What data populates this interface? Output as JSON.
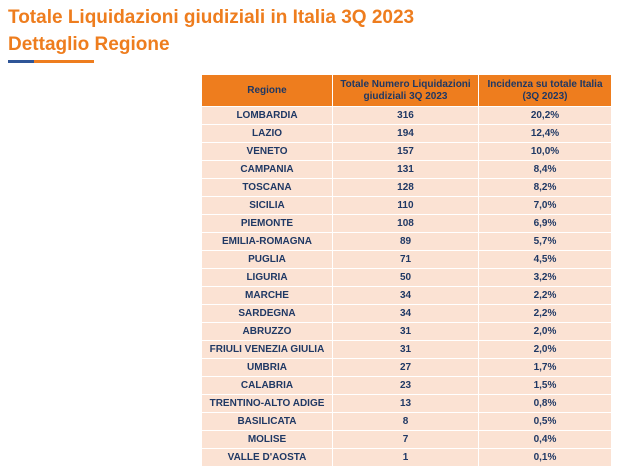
{
  "title": "Totale Liquidazioni giudiziali in Italia 3Q 2023",
  "subtitle": "Dettaglio Regione",
  "table": {
    "headers": [
      "Regione",
      "Totale Numero Liquidazioni giudiziali 3Q 2023",
      "Incidenza su totale Italia (3Q 2023)"
    ],
    "rows": [
      [
        "LOMBARDIA",
        "316",
        "20,2%"
      ],
      [
        "LAZIO",
        "194",
        "12,4%"
      ],
      [
        "VENETO",
        "157",
        "10,0%"
      ],
      [
        "CAMPANIA",
        "131",
        "8,4%"
      ],
      [
        "TOSCANA",
        "128",
        "8,2%"
      ],
      [
        "SICILIA",
        "110",
        "7,0%"
      ],
      [
        "PIEMONTE",
        "108",
        "6,9%"
      ],
      [
        "EMILIA-ROMAGNA",
        "89",
        "5,7%"
      ],
      [
        "PUGLIA",
        "71",
        "4,5%"
      ],
      [
        "LIGURIA",
        "50",
        "3,2%"
      ],
      [
        "MARCHE",
        "34",
        "2,2%"
      ],
      [
        "SARDEGNA",
        "34",
        "2,2%"
      ],
      [
        "ABRUZZO",
        "31",
        "2,0%"
      ],
      [
        "FRIULI VENEZIA GIULIA",
        "31",
        "2,0%"
      ],
      [
        "UMBRIA",
        "27",
        "1,7%"
      ],
      [
        "CALABRIA",
        "23",
        "1,5%"
      ],
      [
        "TRENTINO-ALTO ADIGE",
        "13",
        "0,8%"
      ],
      [
        "BASILICATA",
        "8",
        "0,5%"
      ],
      [
        "MOLISE",
        "7",
        "0,4%"
      ],
      [
        "VALLE D'AOSTA",
        "1",
        "0,1%"
      ]
    ]
  },
  "colors": {
    "accent": "#EE7D1E",
    "header_bg": "#EE7D1E",
    "row_bg": "#FBE2D3",
    "text": "#1F3864",
    "underline_blue": "#2F5597"
  }
}
